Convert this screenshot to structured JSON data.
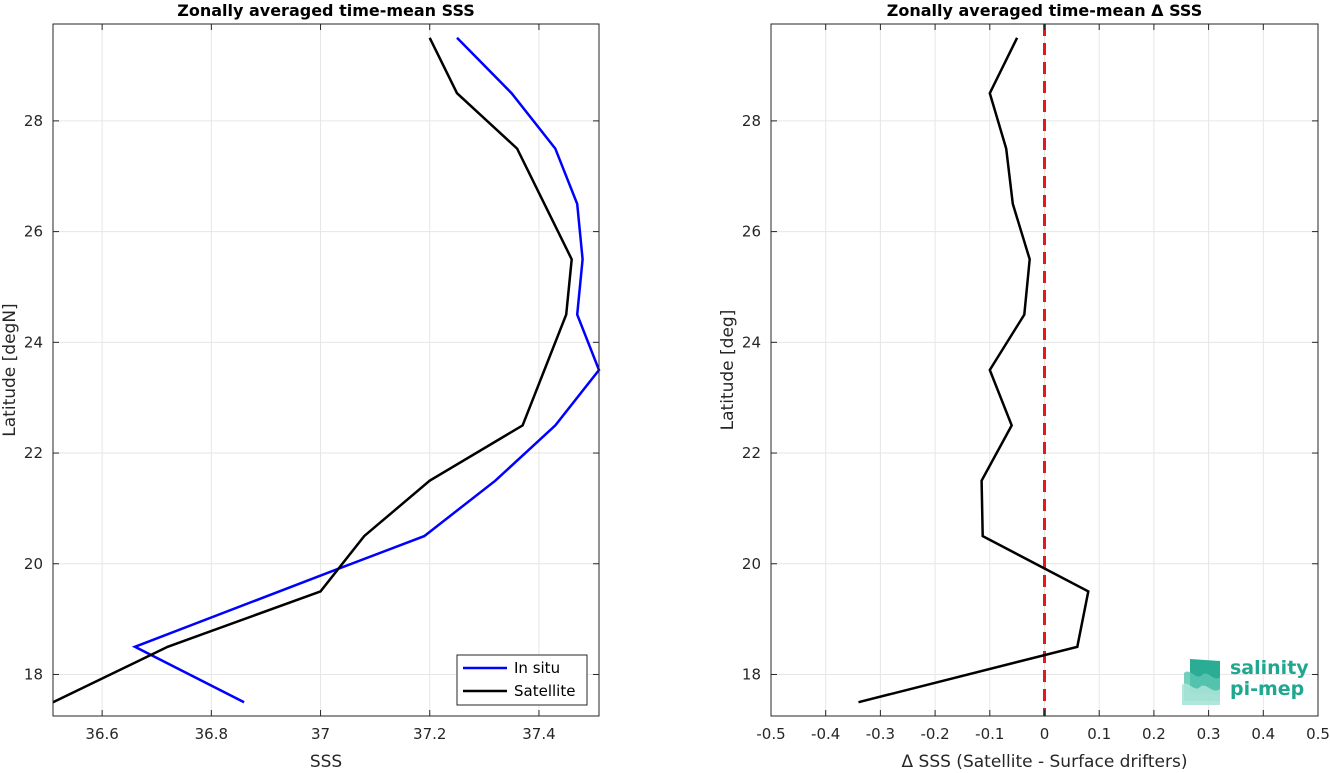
{
  "colors": {
    "in_situ": "#0000ff",
    "satellite": "#000000",
    "zero_line": "#e31a1c",
    "grid": "#e6e6e6",
    "logo": "#1fa88f"
  },
  "logo": {
    "line1": "salinity",
    "line2": "pi-mep"
  },
  "chart_data": [
    {
      "type": "line",
      "title": "Zonally averaged time-mean SSS",
      "xlabel": "SSS",
      "ylabel": "Latitude [degN]",
      "xlim": [
        36.51,
        37.51
      ],
      "ylim": [
        17.25,
        29.75
      ],
      "xticks": [
        36.6,
        36.8,
        37,
        37.2,
        37.4
      ],
      "xtick_labels": [
        "36.6",
        "36.8",
        "37",
        "37.2",
        "37.4"
      ],
      "yticks": [
        18,
        20,
        22,
        24,
        26,
        28
      ],
      "ytick_labels": [
        "18",
        "20",
        "22",
        "24",
        "26",
        "28"
      ],
      "grid": true,
      "legend_position": "bottom-right",
      "series": [
        {
          "name": "In situ",
          "color_key": "in_situ",
          "x": [
            36.86,
            36.66,
            37.03,
            37.19,
            37.32,
            37.43,
            37.51,
            37.47,
            37.48,
            37.47,
            37.43,
            37.35,
            37.25
          ],
          "y": [
            17.5,
            18.5,
            19.9,
            20.5,
            21.5,
            22.5,
            23.5,
            24.5,
            25.5,
            26.5,
            27.5,
            28.5,
            29.5
          ]
        },
        {
          "name": "Satellite",
          "color_key": "satellite",
          "x": [
            36.51,
            36.72,
            37.0,
            37.08,
            37.2,
            37.37,
            37.41,
            37.45,
            37.46,
            37.41,
            37.36,
            37.25,
            37.2
          ],
          "y": [
            17.5,
            18.5,
            19.5,
            20.5,
            21.5,
            22.5,
            23.5,
            24.5,
            25.5,
            26.5,
            27.5,
            28.5,
            29.5
          ]
        }
      ]
    },
    {
      "type": "line",
      "title": "Zonally averaged time-mean Δ SSS",
      "xlabel": "Δ SSS (Satellite - Surface drifters)",
      "ylabel": "Latitude [deg]",
      "xlim": [
        -0.5,
        0.5
      ],
      "ylim": [
        17.25,
        29.75
      ],
      "xticks": [
        -0.5,
        -0.4,
        -0.3,
        -0.2,
        -0.1,
        0,
        0.1,
        0.2,
        0.3,
        0.4,
        0.5
      ],
      "xtick_labels": [
        "-0.5",
        "-0.4",
        "-0.3",
        "-0.2",
        "-0.1",
        "0",
        "0.1",
        "0.2",
        "0.3",
        "0.4",
        "0.5"
      ],
      "yticks": [
        18,
        20,
        22,
        24,
        26,
        28
      ],
      "ytick_labels": [
        "18",
        "20",
        "22",
        "24",
        "26",
        "28"
      ],
      "grid": true,
      "reference_line": {
        "x": 0,
        "style": "dashed",
        "color_key": "zero_line"
      },
      "series": [
        {
          "color_key": "satellite",
          "x": [
            -0.34,
            0.06,
            0.08,
            -0.113,
            -0.115,
            -0.06,
            -0.1,
            -0.037,
            -0.027,
            -0.058,
            -0.07,
            -0.1,
            -0.05
          ],
          "y": [
            17.5,
            18.5,
            19.5,
            20.5,
            21.5,
            22.5,
            23.5,
            24.5,
            25.5,
            26.5,
            27.5,
            28.5,
            29.5
          ]
        }
      ]
    }
  ]
}
